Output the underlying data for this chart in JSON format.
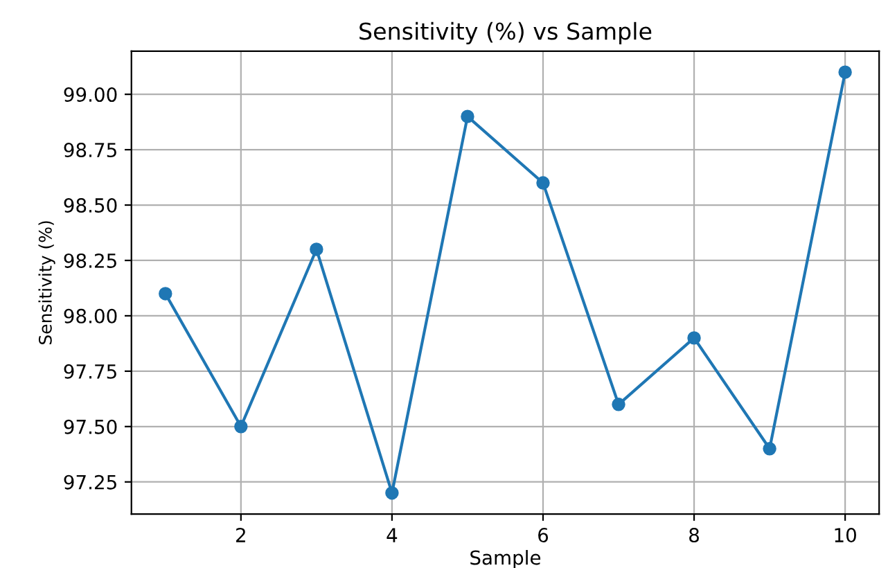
{
  "chart_data": {
    "type": "line",
    "title": "Sensitivity (%) vs Sample",
    "xlabel": "Sample",
    "ylabel": "Sensitivity (%)",
    "x": [
      1,
      2,
      3,
      4,
      5,
      6,
      7,
      8,
      9,
      10
    ],
    "series": [
      {
        "color": "#1f77b4",
        "values": [
          98.1,
          97.5,
          98.3,
          97.2,
          98.9,
          98.6,
          97.6,
          97.9,
          97.4,
          99.1
        ]
      }
    ],
    "xlim": [
      0.55,
      10.45
    ],
    "xticks": [
      2,
      4,
      6,
      8,
      10
    ],
    "ylim": [
      97.105,
      99.195
    ],
    "yticks": [
      {
        "value": 97.25,
        "label": "97.25"
      },
      {
        "value": 97.5,
        "label": "97.50"
      },
      {
        "value": 97.75,
        "label": "97.75"
      },
      {
        "value": 98.0,
        "label": "98.00"
      },
      {
        "value": 98.25,
        "label": "98.25"
      },
      {
        "value": 98.5,
        "label": "98.50"
      },
      {
        "value": 98.75,
        "label": "98.75"
      },
      {
        "value": 99.0,
        "label": "99.00"
      }
    ],
    "grid": true,
    "marker": "circle",
    "line_style": "solid"
  }
}
